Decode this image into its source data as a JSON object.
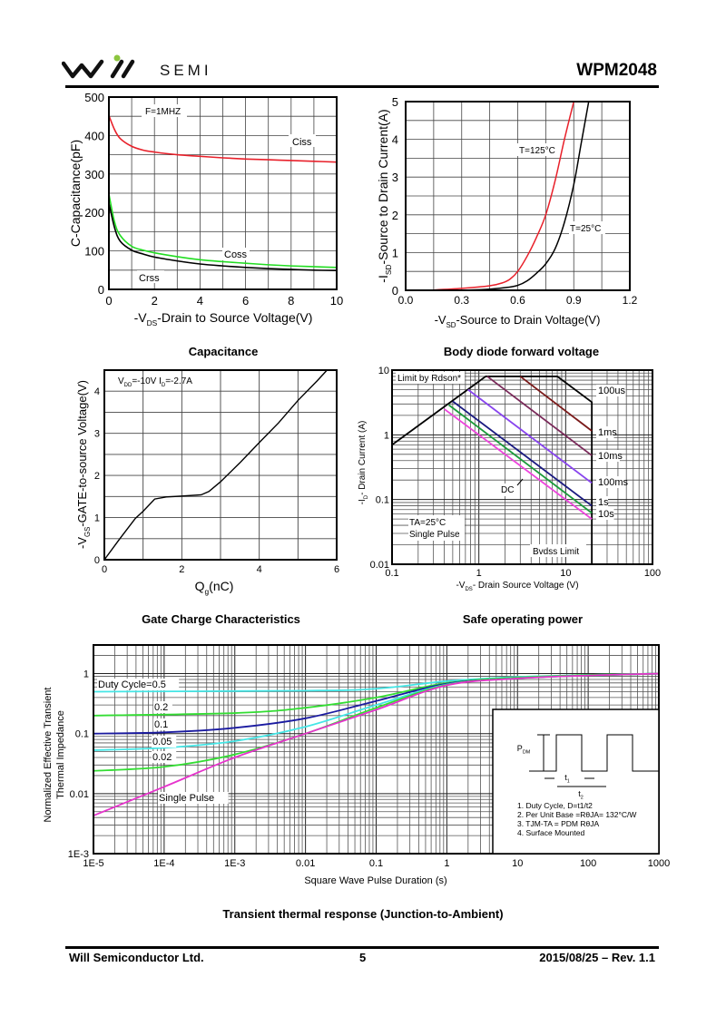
{
  "header": {
    "brand": "SEMI",
    "part_number": "WPM2048"
  },
  "footer": {
    "company": "Will Semiconductor Ltd.",
    "page": "5",
    "date_rev": "2015/08/25 – Rev. 1.1"
  },
  "chart_data": [
    {
      "id": "capacitance",
      "type": "line",
      "caption": "Capacitance",
      "xlabel": "-V_DS-Drain to Source Voltage(V)",
      "ylabel": "C-Capacitance(pF)",
      "xlim": [
        0,
        10
      ],
      "ylim": [
        0,
        500
      ],
      "xticks": [
        0,
        2,
        4,
        6,
        8,
        10
      ],
      "yticks": [
        0,
        100,
        200,
        300,
        400,
        500
      ],
      "grid": true,
      "annotation": "F=1MHZ",
      "series": [
        {
          "name": "Ciss",
          "color": "#e8202a",
          "x": [
            0,
            0.25,
            0.5,
            1,
            1.5,
            2,
            3,
            4,
            5,
            6,
            7,
            8,
            9,
            10
          ],
          "y": [
            452,
            415,
            392,
            372,
            362,
            357,
            350,
            346,
            342,
            339,
            337,
            335,
            333,
            331
          ]
        },
        {
          "name": "Coss",
          "color": "#22dd22",
          "x": [
            0,
            0.25,
            0.5,
            1,
            1.5,
            2,
            3,
            4,
            5,
            6,
            7,
            8,
            9,
            10
          ],
          "y": [
            248,
            175,
            140,
            112,
            102,
            95,
            85,
            77,
            72,
            68,
            64,
            61,
            59,
            57
          ]
        },
        {
          "name": "Crss",
          "color": "#000000",
          "x": [
            0,
            0.25,
            0.5,
            1,
            1.5,
            2,
            3,
            4,
            5,
            6,
            7,
            8,
            9,
            10
          ],
          "y": [
            225,
            160,
            125,
            102,
            92,
            84,
            74,
            66,
            61,
            57,
            54,
            52,
            50,
            49
          ]
        }
      ]
    },
    {
      "id": "body-diode",
      "type": "line",
      "caption": "Body diode forward voltage",
      "xlabel": "-V_SD-Source to Drain Voltage(V)",
      "ylabel": "-I_SD-Source to Drain Current(A)",
      "xlim": [
        0,
        1.2
      ],
      "ylim": [
        0,
        5
      ],
      "xticks": [
        "0.0",
        "0.3",
        "0.6",
        "0.9",
        "1.2"
      ],
      "yticks": [
        0,
        1,
        2,
        3,
        4,
        5
      ],
      "grid": true,
      "series": [
        {
          "name": "T=125°C",
          "color": "#e8202a",
          "x": [
            0.12,
            0.3,
            0.45,
            0.52,
            0.56,
            0.6,
            0.65,
            0.7,
            0.75,
            0.8,
            0.85,
            0.9
          ],
          "y": [
            0,
            0.05,
            0.12,
            0.2,
            0.3,
            0.5,
            0.9,
            1.4,
            2.0,
            2.9,
            4.0,
            5.0
          ]
        },
        {
          "name": "T=25°C",
          "color": "#000000",
          "x": [
            0.3,
            0.45,
            0.55,
            0.6,
            0.65,
            0.7,
            0.75,
            0.8,
            0.85,
            0.9,
            0.94,
            0.98
          ],
          "y": [
            0,
            0.03,
            0.08,
            0.13,
            0.25,
            0.45,
            0.7,
            1.1,
            1.8,
            2.8,
            3.9,
            5.0
          ]
        }
      ]
    },
    {
      "id": "gate-charge",
      "type": "line",
      "caption": "Gate Charge Characteristics",
      "xlabel": "Q_g(nC)",
      "ylabel": "-V_GS-GATE-to-source Voltage(V)",
      "xlim": [
        0,
        6
      ],
      "ylim": [
        0,
        4.5
      ],
      "xticks": [
        0,
        2,
        4,
        6
      ],
      "yticks": [
        0,
        1,
        2,
        3,
        4
      ],
      "grid": true,
      "annotation": "V_DD=-10V I_D=-2.7A",
      "series": [
        {
          "name": "Vgs",
          "color": "#000000",
          "x": [
            0,
            0.4,
            0.8,
            1.0,
            1.3,
            1.6,
            2.0,
            2.5,
            2.7,
            3.0,
            3.5,
            4.0,
            4.5,
            5.0,
            5.5,
            5.75
          ],
          "y": [
            0,
            0.5,
            0.98,
            1.15,
            1.44,
            1.49,
            1.51,
            1.54,
            1.62,
            1.85,
            2.3,
            2.78,
            3.25,
            3.78,
            4.25,
            4.5
          ]
        }
      ]
    },
    {
      "id": "soa",
      "type": "line",
      "caption": "Safe operating power",
      "xlabel": "-V_DS- Drain Source Voltage (V)",
      "ylabel": "-I_D- Drain Current (A)",
      "xscale": "log",
      "yscale": "log",
      "xlim": [
        0.1,
        100
      ],
      "ylim": [
        0.01,
        10
      ],
      "xticks": [
        "0.1",
        "1",
        "10",
        "100"
      ],
      "yticks": [
        "0.01",
        "0.1",
        "1",
        "10"
      ],
      "grid": true,
      "annotations": [
        "Limit by Rdson*",
        "TA=25°C",
        "Single Pulse",
        "Bvdss Limit",
        "DC"
      ],
      "series": [
        {
          "name": "Boundary",
          "color": "#000000",
          "x": [
            0.1,
            1.2,
            8,
            20,
            20
          ],
          "y": [
            0.7,
            8,
            8,
            3.2,
            0.01
          ]
        },
        {
          "name": "100us",
          "color": "#7a1a1a",
          "x": [
            3,
            20
          ],
          "y": [
            8,
            1.15
          ]
        },
        {
          "name": "1ms",
          "color": "#7a2a5a",
          "x": [
            1.25,
            20
          ],
          "y": [
            8,
            0.48
          ]
        },
        {
          "name": "10ms",
          "color": "#8844ee",
          "x": [
            0.75,
            20
          ],
          "y": [
            5,
            0.18
          ]
        },
        {
          "name": "100ms",
          "color": "#1a1a80",
          "x": [
            0.5,
            20
          ],
          "y": [
            3.3,
            0.08
          ]
        },
        {
          "name": "1s",
          "color": "#1a9a3a",
          "x": [
            0.45,
            20
          ],
          "y": [
            2.9,
            0.062
          ]
        },
        {
          "name": "10s",
          "color": "#ee44dd",
          "x": [
            0.4,
            20
          ],
          "y": [
            2.5,
            0.05
          ]
        }
      ],
      "curve_labels": [
        "100us",
        "1ms",
        "10ms",
        "100ms",
        "1s",
        "10s"
      ]
    },
    {
      "id": "transient-thermal",
      "type": "line",
      "caption": "Transient thermal response (Junction-to-Ambient)",
      "xlabel": "Square Wave Pulse Duration (s)",
      "ylabel": "Normalized Effective Transient Thermal Impedance",
      "xscale": "log",
      "yscale": "log",
      "xlim": [
        1e-05,
        1000
      ],
      "ylim": [
        0.001,
        3
      ],
      "xticks": [
        "1E-5",
        "1E-4",
        "1E-3",
        "0.01",
        "0.1",
        "1",
        "10",
        "100",
        "1000"
      ],
      "yticks": [
        "1E-3",
        "0.01",
        "0.1",
        "1"
      ],
      "grid": true,
      "series": [
        {
          "name": "Duty Cycle=0.5",
          "color": "#44e6e6",
          "x": [
            1e-05,
            0.01,
            0.1,
            1,
            10,
            100,
            1000
          ],
          "y": [
            0.5,
            0.52,
            0.56,
            0.75,
            0.88,
            0.95,
            1.0
          ]
        },
        {
          "name": "0.2",
          "color": "#33dd33",
          "x": [
            1e-05,
            0.001,
            0.01,
            0.1,
            1,
            10,
            100,
            1000
          ],
          "y": [
            0.2,
            0.22,
            0.27,
            0.4,
            0.7,
            0.86,
            0.95,
            1.0
          ]
        },
        {
          "name": "0.1",
          "color": "#1a1aa0",
          "x": [
            1e-05,
            0.0001,
            0.001,
            0.01,
            0.1,
            1,
            10,
            100,
            1000
          ],
          "y": [
            0.1,
            0.105,
            0.125,
            0.18,
            0.35,
            0.68,
            0.84,
            0.93,
            1.0
          ]
        },
        {
          "name": "0.05",
          "color": "#44e6e6",
          "x": [
            1e-05,
            0.0001,
            0.001,
            0.01,
            0.1,
            1,
            10,
            100,
            1000
          ],
          "y": [
            0.053,
            0.058,
            0.075,
            0.13,
            0.3,
            0.66,
            0.84,
            0.93,
            1.0
          ]
        },
        {
          "name": "0.02",
          "color": "#33dd33",
          "x": [
            1e-05,
            0.0001,
            0.001,
            0.01,
            0.1,
            1,
            10,
            100,
            1000
          ],
          "y": [
            0.024,
            0.028,
            0.045,
            0.1,
            0.27,
            0.65,
            0.84,
            0.93,
            1.0
          ]
        },
        {
          "name": "Single Pulse",
          "color": "#e633cc",
          "x": [
            1e-05,
            0.0001,
            0.001,
            0.01,
            0.1,
            1,
            10,
            100,
            1000
          ],
          "y": [
            0.0043,
            0.013,
            0.04,
            0.1,
            0.25,
            0.64,
            0.83,
            0.93,
            1.0
          ]
        }
      ],
      "inset": {
        "pdm_label": "P_DM",
        "t1_label": "t1",
        "t2_label": "t2",
        "notes": [
          "1. Duty Cycle, D=t1/t2",
          "2. Per Unit Base =RθJA= 132°C/W",
          "3. TJM-TA = PDM RθJA",
          "4. Surface Mounted"
        ]
      }
    }
  ]
}
